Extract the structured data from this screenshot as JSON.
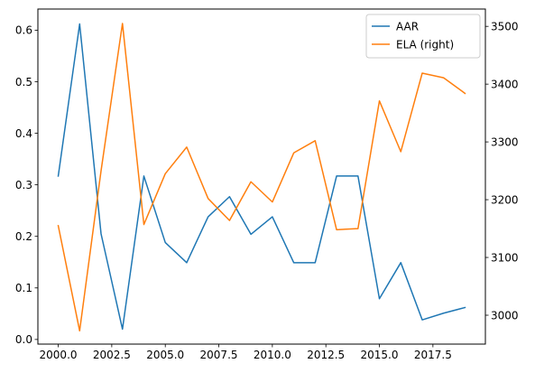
{
  "chart_data": {
    "type": "line",
    "title": "",
    "xlabel": "",
    "ylabel": "",
    "ylabel_right": "",
    "grid": false,
    "legend_position": "top-right",
    "x": [
      2000,
      2001,
      2002,
      2003,
      2004,
      2005,
      2006,
      2007,
      2008,
      2009,
      2010,
      2011,
      2012,
      2013,
      2014,
      2015,
      2016,
      2017,
      2018,
      2019
    ],
    "xlim": [
      1999.05,
      2019.95
    ],
    "x_ticks": [
      2000.0,
      2002.5,
      2005.0,
      2007.5,
      2010.0,
      2012.5,
      2015.0,
      2017.5
    ],
    "x_tick_labels": [
      "2000.0",
      "2002.5",
      "2005.0",
      "2007.5",
      "2010.0",
      "2012.5",
      "2015.0",
      "2017.5"
    ],
    "ylim_left": [
      -0.009,
      0.641
    ],
    "y_ticks_left": [
      0.0,
      0.1,
      0.2,
      0.3,
      0.4,
      0.5,
      0.6
    ],
    "y_tick_labels_left": [
      "0.0",
      "0.1",
      "0.2",
      "0.3",
      "0.4",
      "0.5",
      "0.6"
    ],
    "ylim_right": [
      2950,
      3530
    ],
    "y_ticks_right": [
      3000,
      3100,
      3200,
      3300,
      3400,
      3500
    ],
    "y_tick_labels_right": [
      "3000",
      "3100",
      "3200",
      "3300",
      "3400",
      "3500"
    ],
    "series": [
      {
        "name": "AAR",
        "axis": "left",
        "color": "#1f77b4",
        "values": [
          0.317,
          0.612,
          0.205,
          0.02,
          0.317,
          0.188,
          0.149,
          0.238,
          0.277,
          0.204,
          0.238,
          0.149,
          0.149,
          0.317,
          0.317,
          0.079,
          0.149,
          0.038,
          0.051,
          0.062
        ]
      },
      {
        "name": "ELA (right)",
        "axis": "right",
        "color": "#ff7f0e",
        "values": [
          3155,
          2973,
          3250,
          3505,
          3157,
          3245,
          3291,
          3202,
          3164,
          3231,
          3196,
          3281,
          3302,
          3148,
          3150,
          3371,
          3283,
          3419,
          3411,
          3384
        ]
      }
    ]
  }
}
